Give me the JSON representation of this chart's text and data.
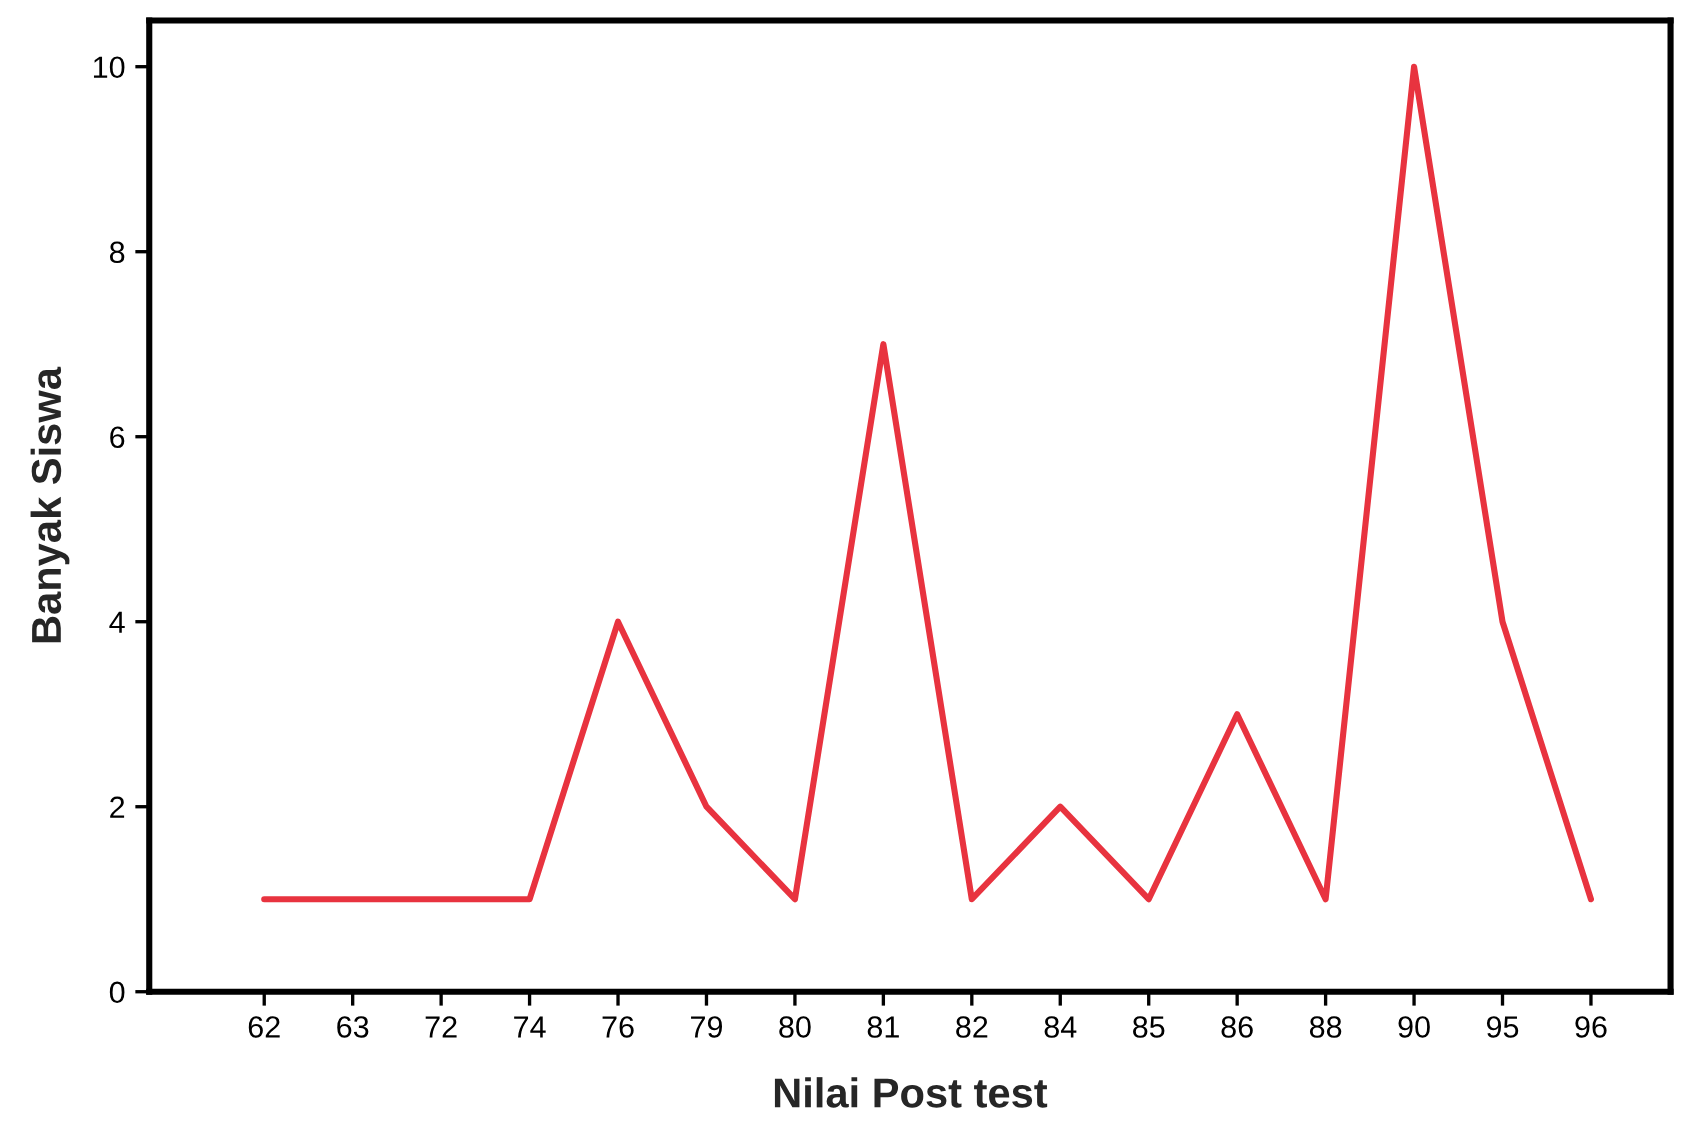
{
  "chart_data": {
    "type": "line",
    "xlabel": "Nilai Post test",
    "ylabel": "Banyak Siswa",
    "categories": [
      "62",
      "63",
      "72",
      "74",
      "76",
      "79",
      "80",
      "81",
      "82",
      "84",
      "85",
      "86",
      "88",
      "90",
      "95",
      "96"
    ],
    "series": [
      {
        "color": "#e8333f",
        "values": [
          1,
          1,
          1,
          1,
          4,
          2,
          1,
          7,
          1,
          2,
          1,
          3,
          1,
          10,
          4,
          1
        ]
      }
    ],
    "ylim": [
      0,
      10.5
    ],
    "yticks": [
      0,
      2,
      4,
      6,
      8,
      10
    ],
    "grid": false,
    "legend": false,
    "marker": "none",
    "line_style": "solid"
  }
}
